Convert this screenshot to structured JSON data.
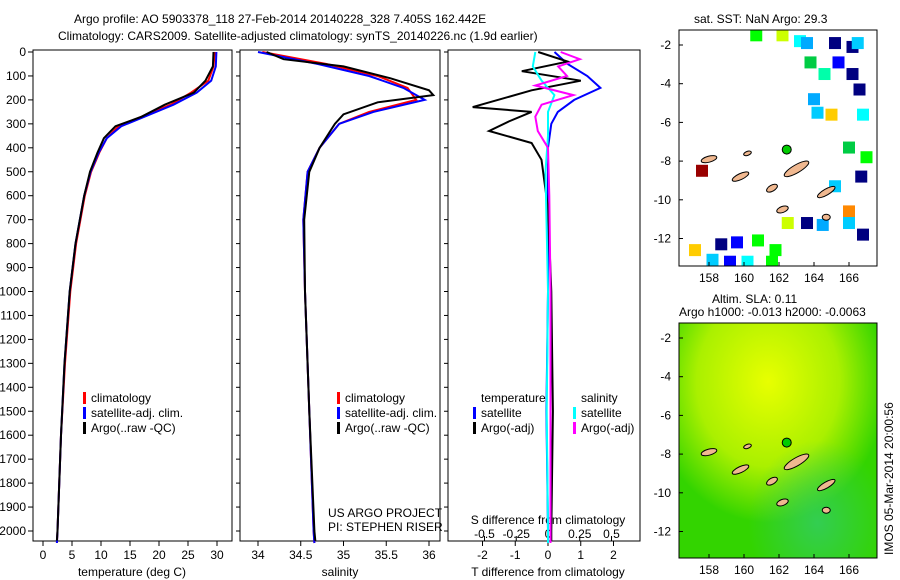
{
  "title_line1": "Argo profile: AO 5903378_118 27-Feb-2014 20140228_328 7.405S 162.442E",
  "title_line2": "Climatology: CARS2009. Satellite-adjusted climatology: synTS_20140226.nc (1.9d earlier)",
  "map1_title": "sat. SST: NaN Argo: 29.3",
  "map2_title1": "Altim. SLA: 0.11",
  "map2_title2": "Argo h1000: -0.013 h2000: -0.0063",
  "stamp": "IMOS 05-Mar-2014 20:00:56",
  "project1": "US ARGO PROJECT",
  "project2": "PI: STEPHEN RISER",
  "colors": {
    "clim": "#ff0000",
    "sat": "#0000ff",
    "argo": "#000000",
    "sal_sat": "#00ffff",
    "sal_argo": "#ff00ff"
  },
  "chart_data": [
    {
      "type": "line",
      "xlabel": "temperature (deg C)",
      "xlim": [
        -2,
        32
      ],
      "xticks": [
        "0",
        "5",
        "10",
        "15",
        "20",
        "25",
        "30"
      ],
      "ylim": [
        0,
        2050
      ],
      "yticks": [
        "0",
        "100",
        "200",
        "300",
        "400",
        "500",
        "600",
        "700",
        "800",
        "900",
        "1000",
        "1100",
        "1200",
        "1300",
        "1400",
        "1500",
        "1600",
        "1700",
        "1800",
        "1900",
        "2000"
      ],
      "legend": [
        "climatology",
        "satellite-adj. clim.",
        "Argo(..raw -QC)"
      ],
      "series": [
        {
          "name": "climatology",
          "color": "#ff0000",
          "points": [
            [
              0,
              29.6
            ],
            [
              60,
              29.4
            ],
            [
              120,
              28.5
            ],
            [
              170,
              25.5
            ],
            [
              220,
              22
            ],
            [
              270,
              17
            ],
            [
              310,
              13
            ],
            [
              360,
              11
            ],
            [
              420,
              9.7
            ],
            [
              500,
              8.3
            ],
            [
              600,
              7.2
            ],
            [
              800,
              5.7
            ],
            [
              1000,
              4.7
            ],
            [
              1300,
              3.8
            ],
            [
              1600,
              3.1
            ],
            [
              2000,
              2.5
            ],
            [
              2050,
              2.4
            ]
          ]
        },
        {
          "name": "satellite-adj. clim.",
          "color": "#0000ff",
          "points": [
            [
              0,
              29.9
            ],
            [
              60,
              29.8
            ],
            [
              120,
              29
            ],
            [
              170,
              26.5
            ],
            [
              220,
              22.5
            ],
            [
              270,
              17.5
            ],
            [
              310,
              13.5
            ],
            [
              360,
              11
            ],
            [
              420,
              9.6
            ],
            [
              500,
              8.2
            ],
            [
              600,
              7.1
            ],
            [
              800,
              5.6
            ],
            [
              1000,
              4.6
            ],
            [
              1300,
              3.7
            ],
            [
              1600,
              3.1
            ],
            [
              2000,
              2.5
            ],
            [
              2050,
              2.4
            ]
          ]
        },
        {
          "name": "Argo(..raw -QC)",
          "color": "#000000",
          "points": [
            [
              0,
              29.4
            ],
            [
              60,
              29.3
            ],
            [
              120,
              28
            ],
            [
              170,
              26
            ],
            [
              220,
              21
            ],
            [
              270,
              17
            ],
            [
              310,
              12.5
            ],
            [
              360,
              10.5
            ],
            [
              420,
              9.4
            ],
            [
              500,
              8.1
            ],
            [
              600,
              7.1
            ],
            [
              800,
              5.6
            ],
            [
              1000,
              4.6
            ],
            [
              1300,
              3.7
            ],
            [
              1600,
              3.1
            ],
            [
              2000,
              2.5
            ],
            [
              2040,
              2.4
            ]
          ]
        }
      ]
    },
    {
      "type": "line",
      "xlabel": "salinity",
      "xlim": [
        33.8,
        36.2
      ],
      "xticks": [
        "34",
        "34.5",
        "35",
        "35.5",
        "36"
      ],
      "ylim": [
        0,
        2050
      ],
      "legend": [
        "climatology",
        "satellite-adj. clim.",
        "Argo(..raw -QC)"
      ],
      "series": [
        {
          "name": "climatology",
          "color": "#ff0000",
          "points": [
            [
              0,
              34.05
            ],
            [
              50,
              34.8
            ],
            [
              100,
              35.4
            ],
            [
              150,
              35.75
            ],
            [
              200,
              35.85
            ],
            [
              250,
              35.3
            ],
            [
              300,
              34.95
            ],
            [
              400,
              34.72
            ],
            [
              500,
              34.58
            ],
            [
              700,
              34.53
            ],
            [
              1000,
              34.55
            ],
            [
              1500,
              34.6
            ],
            [
              2000,
              34.65
            ],
            [
              2050,
              34.66
            ]
          ]
        },
        {
          "name": "satellite-adj. clim.",
          "color": "#0000ff",
          "points": [
            [
              0,
              34.0
            ],
            [
              50,
              34.7
            ],
            [
              100,
              35.3
            ],
            [
              150,
              35.7
            ],
            [
              200,
              35.95
            ],
            [
              250,
              35.35
            ],
            [
              300,
              34.95
            ],
            [
              400,
              34.72
            ],
            [
              500,
              34.58
            ],
            [
              700,
              34.53
            ],
            [
              1000,
              34.55
            ],
            [
              1500,
              34.6
            ],
            [
              2000,
              34.65
            ],
            [
              2050,
              34.66
            ]
          ]
        },
        {
          "name": "Argo(..raw -QC)",
          "color": "#000000",
          "points": [
            [
              0,
              34.1
            ],
            [
              30,
              34.3
            ],
            [
              60,
              35.0
            ],
            [
              110,
              35.55
            ],
            [
              160,
              36.0
            ],
            [
              180,
              36.05
            ],
            [
              210,
              35.4
            ],
            [
              260,
              35.0
            ],
            [
              300,
              34.9
            ],
            [
              400,
              34.72
            ],
            [
              500,
              34.6
            ],
            [
              700,
              34.54
            ],
            [
              1000,
              34.55
            ],
            [
              1500,
              34.6
            ],
            [
              2000,
              34.66
            ],
            [
              2040,
              34.67
            ]
          ]
        }
      ]
    },
    {
      "type": "line",
      "xlabel": "T difference from climatology",
      "xlabel2": "S difference from climatology",
      "xlim": [
        -3,
        3
      ],
      "xticks": [
        "-2",
        "-1",
        "0",
        "1",
        "2"
      ],
      "xticks2": [
        "-0.5",
        "-0.25",
        "0",
        "0.25",
        "0.5"
      ],
      "ylim": [
        0,
        2050
      ],
      "legend_t": [
        "temperature",
        "satellite",
        "Argo(-adj)"
      ],
      "legend_s": [
        "salinity",
        "satellite",
        "Argo(-adj)"
      ],
      "series": [
        {
          "name": "T satellite",
          "color": "#0000ff",
          "points": [
            [
              0,
              0.2
            ],
            [
              50,
              0.6
            ],
            [
              100,
              1.2
            ],
            [
              150,
              1.6
            ],
            [
              200,
              0.8
            ],
            [
              250,
              0.3
            ],
            [
              300,
              0.1
            ],
            [
              400,
              0
            ],
            [
              600,
              0
            ],
            [
              1000,
              0
            ],
            [
              1500,
              -0.05
            ],
            [
              2000,
              0
            ],
            [
              2050,
              0
            ]
          ]
        },
        {
          "name": "T Argo(-adj)",
          "color": "#000000",
          "points": [
            [
              0,
              -0.3
            ],
            [
              40,
              0.6
            ],
            [
              80,
              -0.8
            ],
            [
              120,
              1.0
            ],
            [
              160,
              -0.5
            ],
            [
              230,
              -2.3
            ],
            [
              250,
              -0.5
            ],
            [
              290,
              -1.2
            ],
            [
              330,
              -1.8
            ],
            [
              380,
              -0.5
            ],
            [
              450,
              -0.2
            ],
            [
              550,
              -0.1
            ],
            [
              650,
              0
            ],
            [
              1000,
              0.1
            ],
            [
              1500,
              0.15
            ],
            [
              2000,
              0.1
            ],
            [
              2040,
              0.1
            ]
          ]
        },
        {
          "name": "S satellite",
          "color": "#00ffff",
          "points": [
            [
              0,
              -0.1
            ],
            [
              60,
              -0.12
            ],
            [
              120,
              -0.05
            ],
            [
              180,
              0.05
            ],
            [
              250,
              0.0
            ],
            [
              350,
              0
            ],
            [
              500,
              -0.02
            ],
            [
              1000,
              0
            ],
            [
              1500,
              -0.01
            ],
            [
              2000,
              0
            ],
            [
              2050,
              0
            ]
          ]
        },
        {
          "name": "S Argo(-adj)",
          "color": "#ff00ff",
          "points": [
            [
              0,
              0.1
            ],
            [
              30,
              0.25
            ],
            [
              60,
              0.08
            ],
            [
              100,
              0.15
            ],
            [
              140,
              -0.1
            ],
            [
              180,
              0.2
            ],
            [
              220,
              -0.05
            ],
            [
              270,
              -0.1
            ],
            [
              330,
              -0.08
            ],
            [
              400,
              0
            ],
            [
              600,
              0.01
            ],
            [
              1000,
              0.02
            ],
            [
              2000,
              0.02
            ],
            [
              2050,
              0.02
            ]
          ]
        }
      ]
    },
    {
      "type": "heatmap",
      "title": "sat. SST: NaN Argo: 29.3",
      "xticks": [
        "158",
        "160",
        "162",
        "164",
        "166"
      ],
      "yticks": [
        "-2",
        "-4",
        "-6",
        "-8",
        "-10",
        "-12"
      ],
      "argo_position": [
        162.442,
        -7.405
      ],
      "cells": [
        [
          160.7,
          -1.5,
          "#00ff00"
        ],
        [
          162.2,
          -1.5,
          "#ccff00"
        ],
        [
          163.2,
          -1.8,
          "#00ffff"
        ],
        [
          163.6,
          -1.9,
          "#00aaff"
        ],
        [
          165.2,
          -1.9,
          "#000080"
        ],
        [
          166.2,
          -2.1,
          "#000080"
        ],
        [
          166.5,
          -1.9,
          "#00ccff"
        ],
        [
          163.8,
          -2.9,
          "#00cc44"
        ],
        [
          164.6,
          -3.5,
          "#00ffaa"
        ],
        [
          165.4,
          -2.9,
          "#0000ff"
        ],
        [
          166.2,
          -3.5,
          "#000080"
        ],
        [
          166.6,
          -4.3,
          "#000080"
        ],
        [
          164.0,
          -4.8,
          "#00aaff"
        ],
        [
          165.0,
          -5.6,
          "#ffcc00"
        ],
        [
          164.2,
          -5.5,
          "#00ccff"
        ],
        [
          166.8,
          -5.6,
          "#00ffff"
        ],
        [
          166.0,
          -7.3,
          "#00cc44"
        ],
        [
          167.0,
          -7.8,
          "#00ff00"
        ],
        [
          166.7,
          -8.8,
          "#000080"
        ],
        [
          157.6,
          -8.5,
          "#990000"
        ],
        [
          165.2,
          -9.3,
          "#00ccff"
        ],
        [
          166.0,
          -10.6,
          "#ff8800"
        ],
        [
          166.0,
          -11.2,
          "#00ccff"
        ],
        [
          166.8,
          -11.8,
          "#000080"
        ],
        [
          164.5,
          -11.3,
          "#00aaff"
        ],
        [
          163.6,
          -11.2,
          "#000080"
        ],
        [
          162.5,
          -11.2,
          "#ccff00"
        ],
        [
          158.7,
          -12.3,
          "#000080"
        ],
        [
          159.6,
          -12.2,
          "#0000ff"
        ],
        [
          160.8,
          -12.1,
          "#00ff00"
        ],
        [
          161.8,
          -12.6,
          "#00ff00"
        ],
        [
          157.2,
          -12.6,
          "#ffcc00"
        ],
        [
          158.2,
          -13.1,
          "#00ccff"
        ],
        [
          159.2,
          -13.2,
          "#0000ff"
        ],
        [
          160.2,
          -13.2,
          "#00ffff"
        ],
        [
          161.6,
          -13.2,
          "#00ff00"
        ]
      ]
    },
    {
      "type": "heatmap",
      "title": "Altim. SLA: 0.11",
      "xticks": [
        "158",
        "160",
        "162",
        "164",
        "166"
      ],
      "yticks": [
        "-2",
        "-4",
        "-6",
        "-8",
        "-10",
        "-12"
      ],
      "argo_position": [
        162.442,
        -7.405
      ]
    }
  ]
}
